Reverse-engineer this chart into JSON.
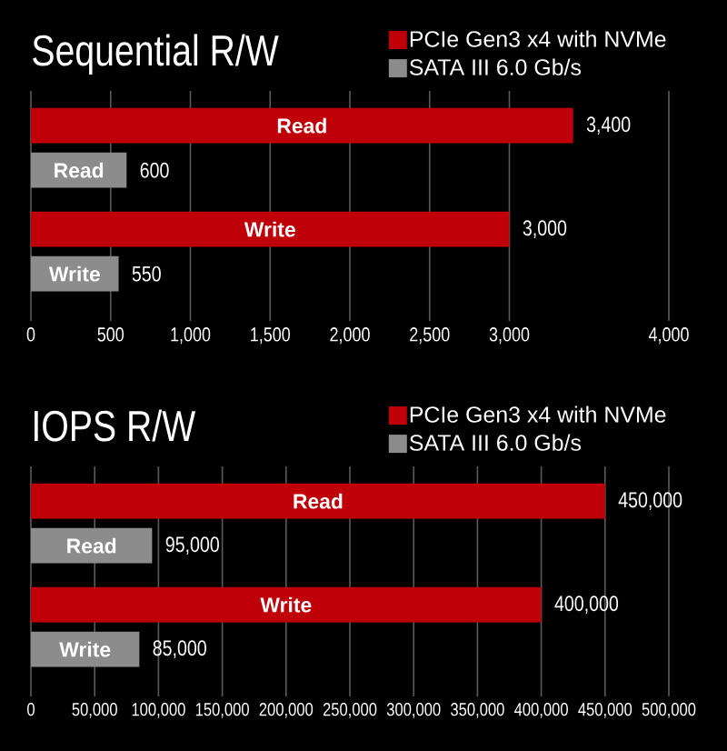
{
  "chart_data": [
    {
      "type": "bar",
      "orientation": "horizontal",
      "title": "Sequential R/W",
      "categories": [
        "Read",
        "Write"
      ],
      "series": [
        {
          "name": "PCIe Gen3 x4 with NVMe",
          "color": "#c00008",
          "values": [
            3400,
            3000
          ],
          "value_labels": [
            "3,400",
            "3,000"
          ]
        },
        {
          "name": "SATA III 6.0 Gb/s",
          "color": "#8c8c8c",
          "values": [
            600,
            550
          ],
          "value_labels": [
            "600",
            "550"
          ]
        }
      ],
      "xlim": [
        0,
        4000
      ],
      "xticks": [
        0,
        500,
        {
          "value": 1000,
          "label": "1,000"
        },
        {
          "value": 1500,
          "label": "1,500"
        },
        {
          "value": 2000,
          "label": "2,000"
        },
        {
          "value": 2500,
          "label": "2,500"
        },
        {
          "value": 3000,
          "label": "3,000"
        },
        {
          "value": 4000,
          "label": "4,000"
        }
      ],
      "grid": "x",
      "legend": "top right"
    },
    {
      "type": "bar",
      "orientation": "horizontal",
      "title": "IOPS R/W",
      "categories": [
        "Read",
        "Write"
      ],
      "series": [
        {
          "name": "PCIe Gen3 x4 with NVMe",
          "color": "#c00008",
          "values": [
            450000,
            400000
          ],
          "value_labels": [
            "450,000",
            "400,000"
          ]
        },
        {
          "name": "SATA III 6.0 Gb/s",
          "color": "#8c8c8c",
          "values": [
            95000,
            85000
          ],
          "value_labels": [
            "95,000",
            "85,000"
          ]
        }
      ],
      "xlim": [
        0,
        500000
      ],
      "xticks": [
        0,
        {
          "value": 50000,
          "label": "50,000"
        },
        {
          "value": 100000,
          "label": "100,000"
        },
        {
          "value": 150000,
          "label": "150,000"
        },
        {
          "value": 200000,
          "label": "200,000"
        },
        {
          "value": 250000,
          "label": "250,000"
        },
        {
          "value": 300000,
          "label": "300,000"
        },
        {
          "value": 350000,
          "label": "350,000"
        },
        {
          "value": 400000,
          "label": "400,000"
        },
        {
          "value": 450000,
          "label": "450,000"
        },
        {
          "value": 500000,
          "label": "500,000"
        }
      ],
      "grid": "x",
      "legend": "top right"
    }
  ]
}
